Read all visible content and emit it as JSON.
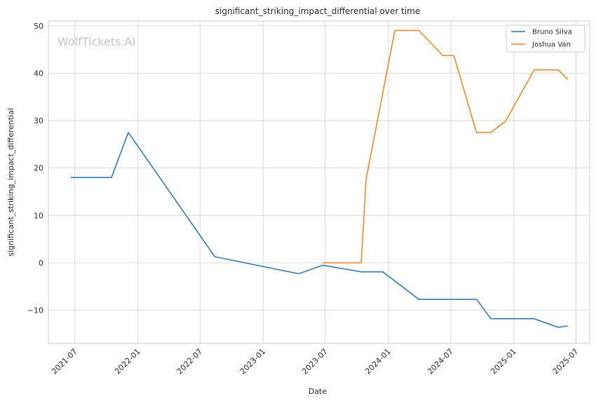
{
  "watermark": "WolfTickets.AI",
  "colors": {
    "Bruno Silva": "#1f77b4",
    "Joshua Van": "#ff7f0e"
  },
  "chart_data": {
    "type": "line",
    "title": "significant_striking_impact_differential over time",
    "xlabel": "Date",
    "ylabel": "significant_striking_impact_differential",
    "xlim": [
      "2021-04-15",
      "2025-08-10"
    ],
    "ylim": [
      -17,
      51
    ],
    "x_ticks": [
      "2021-07",
      "2022-01",
      "2022-07",
      "2023-01",
      "2023-07",
      "2024-01",
      "2024-07",
      "2025-01",
      "2025-07"
    ],
    "y_ticks": [
      -10,
      0,
      10,
      20,
      30,
      40,
      50
    ],
    "y_tick_labels": [
      "−10",
      "0",
      "10",
      "20",
      "30",
      "40",
      "50"
    ],
    "grid": true,
    "legend_position": "top-right",
    "series": [
      {
        "name": "Bruno Silva",
        "x": [
          "2021-06-19",
          "2021-10-16",
          "2021-12-04",
          "2022-08-13",
          "2023-04-15",
          "2023-06-24",
          "2023-10-14",
          "2023-12-16",
          "2024-03-30",
          "2024-09-14",
          "2024-10-26",
          "2025-03-01",
          "2025-05-10",
          "2025-06-07"
        ],
        "y": [
          18,
          18,
          27.5,
          1.3,
          -2.3,
          -0.5,
          -1.9,
          -1.9,
          -7.7,
          -7.7,
          -11.8,
          -11.8,
          -13.6,
          -13.3
        ]
      },
      {
        "name": "Joshua Van",
        "x": [
          "2023-06-24",
          "2023-10-14",
          "2023-10-28",
          "2024-01-20",
          "2024-03-30",
          "2024-06-08",
          "2024-07-10",
          "2024-09-14",
          "2024-10-26",
          "2024-12-07",
          "2025-03-01",
          "2025-05-10",
          "2025-06-07"
        ],
        "y": [
          0,
          0,
          17.5,
          49,
          49,
          43.7,
          43.7,
          27.5,
          27.5,
          29.8,
          40.7,
          40.7,
          38.7
        ]
      }
    ]
  }
}
